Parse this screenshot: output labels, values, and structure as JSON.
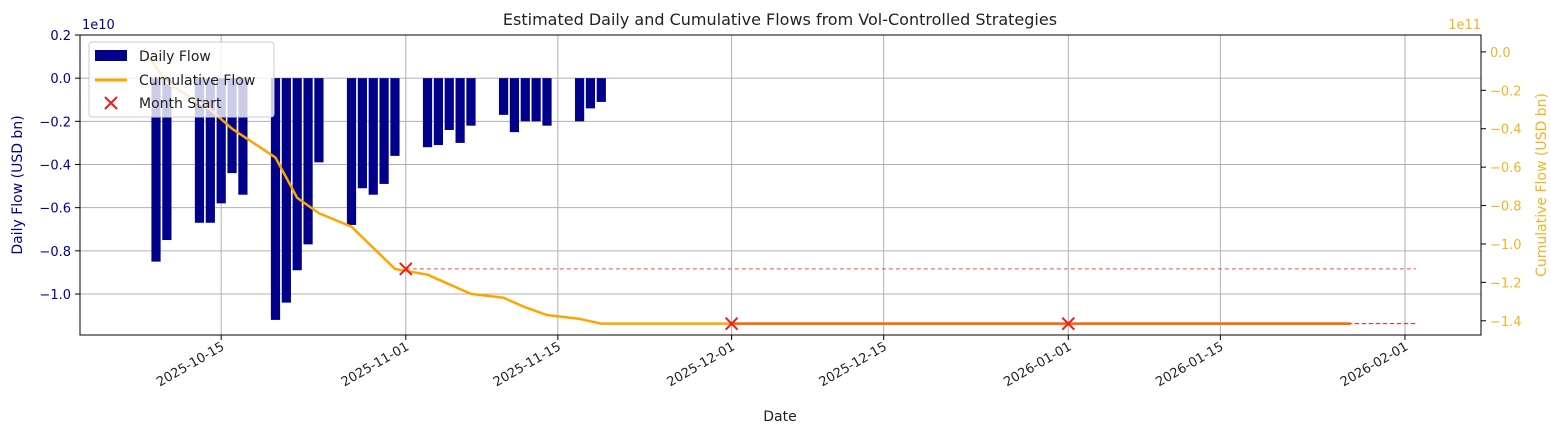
{
  "chart_data": {
    "type": "bar+line",
    "title": "Estimated Daily and Cumulative Flows from Vol-Controlled Strategies",
    "xlabel": "Date",
    "ylabel_left": "Daily Flow (USD bn)",
    "ylabel_right": "Cumulative Flow (USD bn)",
    "left_offset_label": "1e10",
    "right_offset_label": "1e11",
    "xlim": [
      "2025-10-02",
      "2026-02-08"
    ],
    "ylim_left": [
      -1.19,
      0.2
    ],
    "ylim_right": [
      -1.474,
      0.088
    ],
    "x_ticks": [
      "2025-10-15",
      "2025-11-01",
      "2025-11-15",
      "2025-12-01",
      "2025-12-15",
      "2026-01-01",
      "2026-01-15",
      "2026-02-01"
    ],
    "y_ticks_left": [
      "0.2",
      "0.0",
      "−0.2",
      "−0.4",
      "−0.6",
      "−0.8",
      "−1.0"
    ],
    "y_ticks_left_values": [
      0.2,
      0.0,
      -0.2,
      -0.4,
      -0.6,
      -0.8,
      -1.0
    ],
    "y_ticks_right": [
      "0.0",
      "−0.2",
      "−0.4",
      "−0.6",
      "−0.8",
      "−1.0",
      "−1.2",
      "−1.4"
    ],
    "y_ticks_right_values": [
      0.0,
      -0.2,
      -0.4,
      -0.6,
      -0.8,
      -1.0,
      -1.2,
      -1.4
    ],
    "grid": true,
    "legend_position": "top-left",
    "legend": [
      "Daily Flow",
      "Cumulative Flow",
      "Month Start"
    ],
    "colors": {
      "daily": "#00008b",
      "cumulative": "#ffa500",
      "month_start": "#e8201c",
      "left_axis": "#00008b",
      "right_axis": "#f5b324"
    },
    "daily_flow": {
      "name": "Daily Flow",
      "unit": "1e10 USD",
      "dates": [
        "2025-10-09",
        "2025-10-10",
        "2025-10-13",
        "2025-10-14",
        "2025-10-15",
        "2025-10-16",
        "2025-10-17",
        "2025-10-20",
        "2025-10-21",
        "2025-10-22",
        "2025-10-23",
        "2025-10-24",
        "2025-10-27",
        "2025-10-28",
        "2025-10-29",
        "2025-10-30",
        "2025-10-31",
        "2025-11-03",
        "2025-11-04",
        "2025-11-05",
        "2025-11-06",
        "2025-11-07",
        "2025-11-10",
        "2025-11-11",
        "2025-11-12",
        "2025-11-13",
        "2025-11-14",
        "2025-11-17",
        "2025-11-18",
        "2025-11-19"
      ],
      "values": [
        -0.85,
        -0.75,
        -0.67,
        -0.67,
        -0.58,
        -0.44,
        -0.54,
        -1.12,
        -1.04,
        -0.89,
        -0.77,
        -0.39,
        -0.68,
        -0.51,
        -0.54,
        -0.49,
        -0.36,
        -0.32,
        -0.31,
        -0.24,
        -0.3,
        -0.22,
        -0.17,
        -0.25,
        -0.2,
        -0.2,
        -0.22,
        -0.2,
        -0.14,
        -0.11
      ]
    },
    "cumulative_flow": {
      "name": "Cumulative Flow",
      "unit": "1e11 USD",
      "dates": [
        "2025-10-08",
        "2025-10-10",
        "2025-10-14",
        "2025-10-16",
        "2025-10-20",
        "2025-10-22",
        "2025-10-24",
        "2025-10-27",
        "2025-10-31",
        "2025-11-03",
        "2025-11-05",
        "2025-11-07",
        "2025-11-10",
        "2025-11-12",
        "2025-11-14",
        "2025-11-17",
        "2025-11-19",
        "2026-01-27"
      ],
      "values": [
        0.0,
        -0.16,
        -0.3,
        -0.4,
        -0.55,
        -0.76,
        -0.84,
        -0.91,
        -1.13,
        -1.16,
        -1.21,
        -1.26,
        -1.28,
        -1.33,
        -1.37,
        -1.39,
        -1.415,
        -1.415
      ]
    },
    "month_start": {
      "name": "Month Start",
      "dates": [
        "2025-11-01",
        "2025-12-01",
        "2026-01-01"
      ],
      "values": [
        -1.13,
        -1.415,
        -1.415
      ],
      "dashed_to": "2026-02-02"
    }
  }
}
